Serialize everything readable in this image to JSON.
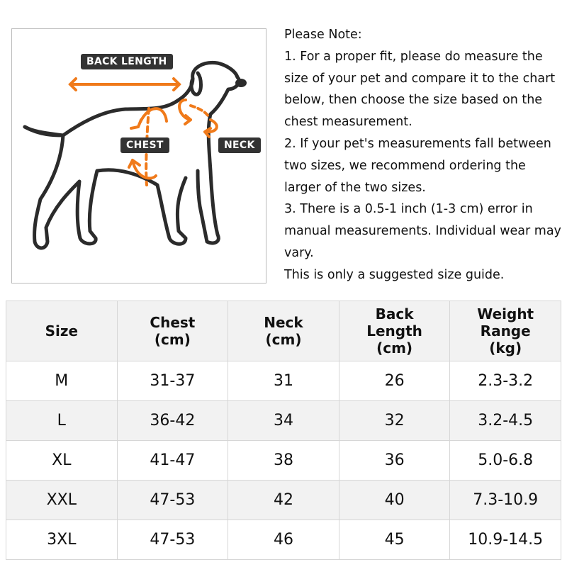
{
  "diagram": {
    "labels": {
      "back_length": "BACK LENGTH",
      "chest": "CHEST",
      "neck": "NECK"
    },
    "accent_color": "#f07a1a",
    "line_color": "#2b2b2b"
  },
  "note": {
    "lines": [
      "Please Note:",
      "1. For a proper fit, please do measure the size of your pet and compare it to the chart below, then choose the size based on the chest measurement.",
      "2. If your pet's measurements fall between two sizes, we recommend ordering the larger of the two sizes.",
      "3. There is a 0.5-1 inch (1-3 cm) error in manual measurements. Individual wear may vary.",
      "This is only a suggested size guide."
    ]
  },
  "table": {
    "headers": [
      "Size",
      "Chest\n(cm)",
      "Neck\n(cm)",
      "Back\nLength\n(cm)",
      "Weight\nRange\n(kg)"
    ],
    "rows": [
      [
        "M",
        "31-37",
        "31",
        "26",
        "2.3-3.2"
      ],
      [
        "L",
        "36-42",
        "34",
        "32",
        "3.2-4.5"
      ],
      [
        "XL",
        "41-47",
        "38",
        "36",
        "5.0-6.8"
      ],
      [
        "XXL",
        "47-53",
        "42",
        "40",
        "7.3-10.9"
      ],
      [
        "3XL",
        "47-53",
        "46",
        "45",
        "10.9-14.5"
      ]
    ]
  }
}
